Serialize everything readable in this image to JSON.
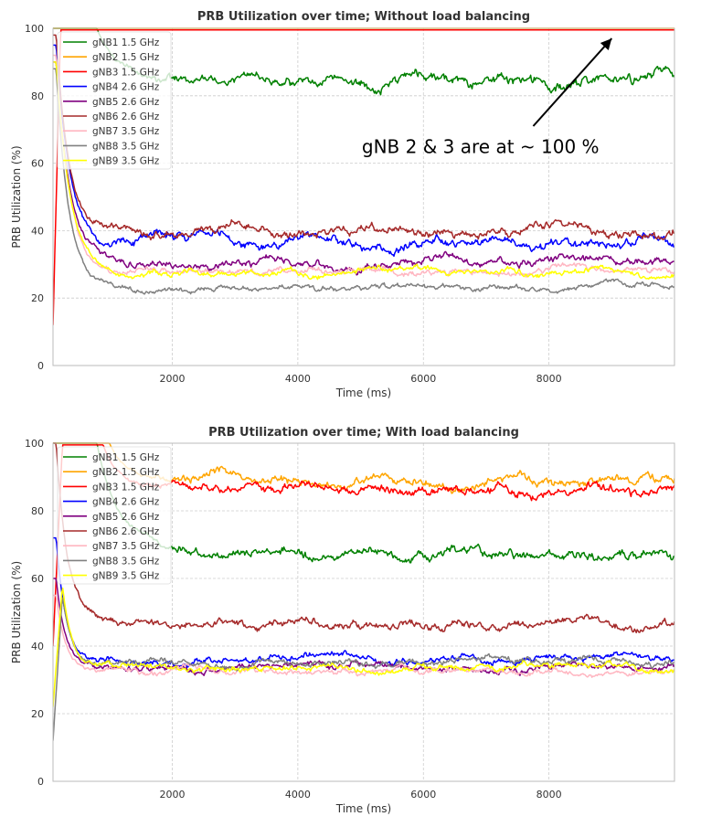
{
  "colors": {
    "gNB1": "#008000",
    "gNB2": "#ffa500",
    "gNB3": "#ff0000",
    "gNB4": "#0000ff",
    "gNB5": "#800080",
    "gNB6": "#a52a2a",
    "gNB7": "#ffb6c1",
    "gNB8": "#808080",
    "gNB9": "#ffff00",
    "grid": "#cccccc",
    "axis": "#bbbbbb",
    "text": "#333333"
  },
  "chart_data": [
    {
      "type": "line",
      "title": "PRB Utilization over time; Without load balancing",
      "xlabel": "Time (ms)",
      "ylabel": "PRB Utilization (%)",
      "xlim": [
        100,
        10000
      ],
      "ylim": [
        0,
        100
      ],
      "xticks": [
        2000,
        4000,
        6000,
        8000
      ],
      "xtick_labels": [
        "2000",
        "4000",
        "6000",
        "8000"
      ],
      "yticks": [
        0,
        20,
        40,
        60,
        80,
        100
      ],
      "ytick_labels": [
        "0",
        "20",
        "40",
        "60",
        "80",
        "100"
      ],
      "grid": true,
      "legend_position": "top-left",
      "annotation": {
        "text": "gNB 2 & 3 are at ~ 100 %",
        "text_at": [
          8800,
          63
        ],
        "arrow_from": [
          7750,
          71
        ],
        "arrow_to": [
          9000,
          97
        ]
      },
      "series": [
        {
          "name": "gNB1 1.5 GHz",
          "color_key": "gNB1",
          "start": 100,
          "peak": 100,
          "peak_t": 200,
          "hold": 800,
          "level": 85,
          "tau": 300,
          "amp": 2.5
        },
        {
          "name": "gNB2 1.5 GHz",
          "color_key": "gNB2",
          "start": 100,
          "peak": 100,
          "peak_t": 200,
          "hold": 10000,
          "level": 100,
          "tau": 300,
          "amp": 0
        },
        {
          "name": "gNB3 1.5 GHz",
          "color_key": "gNB3",
          "start": 12,
          "peak": 99.5,
          "peak_t": 220,
          "hold": 10000,
          "level": 99.5,
          "tau": 300,
          "amp": 0
        },
        {
          "name": "gNB4 2.6 GHz",
          "color_key": "gNB4",
          "start": 95,
          "peak": 95,
          "peak_t": 150,
          "hold": 150,
          "level": 36,
          "tau": 220,
          "amp": 2.2
        },
        {
          "name": "gNB5 2.6 GHz",
          "color_key": "gNB5",
          "start": 90,
          "peak": 90,
          "peak_t": 150,
          "hold": 150,
          "level": 31,
          "tau": 220,
          "amp": 1.8
        },
        {
          "name": "gNB6 2.6 GHz",
          "color_key": "gNB6",
          "start": 98,
          "peak": 98,
          "peak_t": 150,
          "hold": 150,
          "level": 40,
          "tau": 200,
          "amp": 2.0
        },
        {
          "name": "gNB7 3.5 GHz",
          "color_key": "gNB7",
          "start": 92,
          "peak": 92,
          "peak_t": 150,
          "hold": 150,
          "level": 28,
          "tau": 220,
          "amp": 1.5
        },
        {
          "name": "gNB8 3.5 GHz",
          "color_key": "gNB8",
          "start": 88,
          "peak": 88,
          "peak_t": 150,
          "hold": 150,
          "level": 23,
          "tau": 200,
          "amp": 1.3
        },
        {
          "name": "gNB9 3.5 GHz",
          "color_key": "gNB9",
          "start": 90,
          "peak": 90,
          "peak_t": 150,
          "hold": 150,
          "level": 27.5,
          "tau": 230,
          "amp": 1.4
        }
      ]
    },
    {
      "type": "line",
      "title": "PRB Utilization over time; With load balancing",
      "xlabel": "Time (ms)",
      "ylabel": "PRB Utilization (%)",
      "xlim": [
        100,
        10000
      ],
      "ylim": [
        0,
        100
      ],
      "xticks": [
        2000,
        4000,
        6000,
        8000
      ],
      "xtick_labels": [
        "2000",
        "4000",
        "6000",
        "8000"
      ],
      "yticks": [
        0,
        20,
        40,
        60,
        80,
        100
      ],
      "ytick_labels": [
        "0",
        "20",
        "40",
        "60",
        "80",
        "100"
      ],
      "grid": true,
      "legend_position": "top-left",
      "series": [
        {
          "name": "gNB1 1.5 GHz",
          "color_key": "gNB1",
          "start": 100,
          "peak": 100,
          "peak_t": 200,
          "hold": 800,
          "level": 67,
          "tau": 350,
          "amp": 2.2
        },
        {
          "name": "gNB2 1.5 GHz",
          "color_key": "gNB2",
          "start": 100,
          "peak": 100,
          "peak_t": 200,
          "hold": 1000,
          "level": 89,
          "tau": 250,
          "amp": 2.0
        },
        {
          "name": "gNB3 1.5 GHz",
          "color_key": "gNB3",
          "start": 40,
          "peak": 99.5,
          "peak_t": 250,
          "hold": 900,
          "level": 86,
          "tau": 250,
          "amp": 2.0
        },
        {
          "name": "gNB4 2.6 GHz",
          "color_key": "gNB4",
          "start": 72,
          "peak": 72,
          "peak_t": 150,
          "hold": 150,
          "level": 36,
          "tau": 150,
          "amp": 1.5
        },
        {
          "name": "gNB5 2.6 GHz",
          "color_key": "gNB5",
          "start": 60,
          "peak": 60,
          "peak_t": 150,
          "hold": 150,
          "level": 33.5,
          "tau": 150,
          "amp": 1.5
        },
        {
          "name": "gNB6 2.6 GHz",
          "color_key": "gNB6",
          "start": 100,
          "peak": 100,
          "peak_t": 150,
          "hold": 150,
          "level": 47,
          "tau": 180,
          "amp": 1.8
        },
        {
          "name": "gNB7 3.5 GHz",
          "color_key": "gNB7",
          "start": 55,
          "peak": 55,
          "peak_t": 150,
          "hold": 150,
          "level": 32.5,
          "tau": 150,
          "amp": 1.4
        },
        {
          "name": "gNB8 3.5 GHz",
          "color_key": "gNB8",
          "start": 12,
          "peak": 55,
          "peak_t": 250,
          "hold": 250,
          "level": 35,
          "tau": 150,
          "amp": 1.5
        },
        {
          "name": "gNB9 3.5 GHz",
          "color_key": "gNB9",
          "start": 22,
          "peak": 58,
          "peak_t": 250,
          "hold": 250,
          "level": 33.5,
          "tau": 150,
          "amp": 1.4
        }
      ]
    }
  ]
}
